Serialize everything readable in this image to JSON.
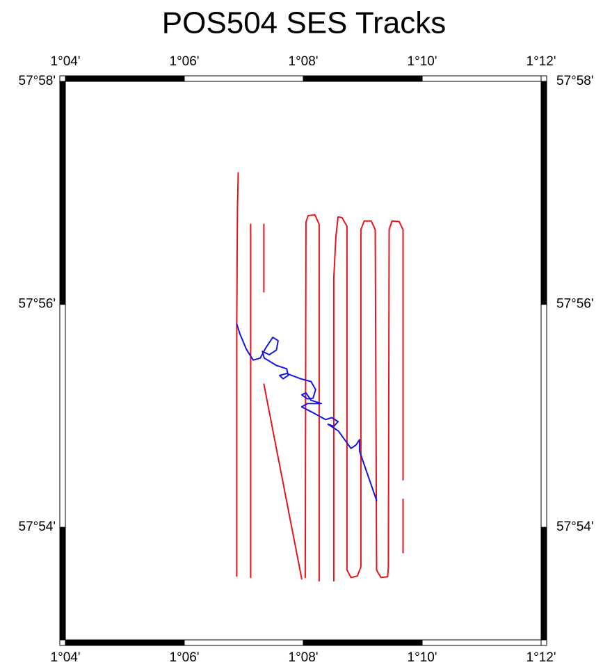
{
  "chart_data": {
    "type": "track-map",
    "title": "POS504 SES Tracks",
    "xlim": [
      1.066667,
      1.2
    ],
    "xticks": [
      {
        "value": 1.066667,
        "label": "1°04'"
      },
      {
        "value": 1.1,
        "label": "1°06'"
      },
      {
        "value": 1.133333,
        "label": "1°08'"
      },
      {
        "value": 1.166667,
        "label": "1°10'"
      },
      {
        "value": 1.2,
        "label": "1°12'"
      }
    ],
    "ylim": [
      57.88317,
      57.966667
    ],
    "yticks": [
      {
        "value": 57.9,
        "label": "57°54'"
      },
      {
        "value": 57.933333,
        "label": "57°56'"
      },
      {
        "value": 57.966667,
        "label": "57°58'"
      }
    ],
    "series": [
      {
        "color": "#e8141b",
        "x": [
          1.1151,
          1.1149,
          1.1147,
          1.1147
        ],
        "y": [
          57.953,
          57.9476,
          57.93,
          57.8927
        ]
      },
      {
        "color": "#e8141b",
        "x": [
          1.1186,
          1.1186
        ],
        "y": [
          57.9453,
          57.8925
        ]
      },
      {
        "color": "#e8141b",
        "x": [
          1.1223,
          1.1223
        ],
        "y": [
          57.9453,
          57.9352
        ]
      },
      {
        "color": "#e8141b",
        "x": [
          1.1223,
          1.1329
        ],
        "y": [
          57.9214,
          57.8923
        ]
      },
      {
        "color": "#e8141b",
        "x": [
          1.1339,
          1.1341,
          1.1347,
          1.1366,
          1.1378,
          1.1378
        ],
        "y": [
          57.8925,
          57.9456,
          57.9466,
          57.9467,
          57.9453,
          57.892
        ]
      },
      {
        "color": "#e8141b",
        "x": [
          1.1419,
          1.1419,
          1.1425,
          1.1431,
          1.1442,
          1.1456,
          1.1456,
          1.1467,
          1.1485,
          1.1495,
          1.1495,
          1.1504,
          1.1524,
          1.1535,
          1.1539,
          1.1551,
          1.157,
          1.1572,
          1.1574,
          1.1582,
          1.1602,
          1.1613,
          1.1613
        ],
        "y": [
          57.892,
          57.9372,
          57.9435,
          57.9464,
          57.9463,
          57.945,
          57.8936,
          57.8925,
          57.8927,
          57.8941,
          57.9445,
          57.9458,
          57.9458,
          57.9445,
          57.8936,
          57.8925,
          57.8926,
          57.8941,
          57.9445,
          57.9458,
          57.9457,
          57.9445,
          57.9071
        ]
      },
      {
        "color": "#e8141b",
        "x": [
          1.1613,
          1.1613
        ],
        "y": [
          57.9042,
          57.8962
        ]
      },
      {
        "color": "#1414e0",
        "x": [
          1.1147,
          1.1156,
          1.1174,
          1.1193,
          1.1213,
          1.1228,
          1.1248,
          1.1263,
          1.1258,
          1.1238,
          1.1219,
          1.1224,
          1.1258,
          1.1287,
          1.1291,
          1.1277,
          1.1267,
          1.1287,
          1.1326,
          1.1355,
          1.1368,
          1.1361,
          1.1345,
          1.1329,
          1.1341,
          1.1355,
          1.1384,
          1.1345,
          1.1329,
          1.1355,
          1.1396,
          1.1413,
          1.1431,
          1.1419,
          1.1403,
          1.1432,
          1.1467,
          1.1481,
          1.1491,
          1.1491,
          1.1539
        ],
        "y": [
          57.9304,
          57.9289,
          57.9266,
          57.925,
          57.9253,
          57.9268,
          57.9284,
          57.9279,
          57.9265,
          57.9258,
          57.9263,
          57.9253,
          57.9242,
          57.9237,
          57.9227,
          57.9222,
          57.9227,
          57.923,
          57.9222,
          57.9218,
          57.9206,
          57.9193,
          57.9192,
          57.9198,
          57.9201,
          57.919,
          57.9185,
          57.9185,
          57.918,
          57.9173,
          57.9161,
          57.9164,
          57.9158,
          57.9151,
          57.9154,
          57.9144,
          57.9118,
          57.9123,
          57.9131,
          57.9114,
          57.904
        ]
      }
    ]
  }
}
